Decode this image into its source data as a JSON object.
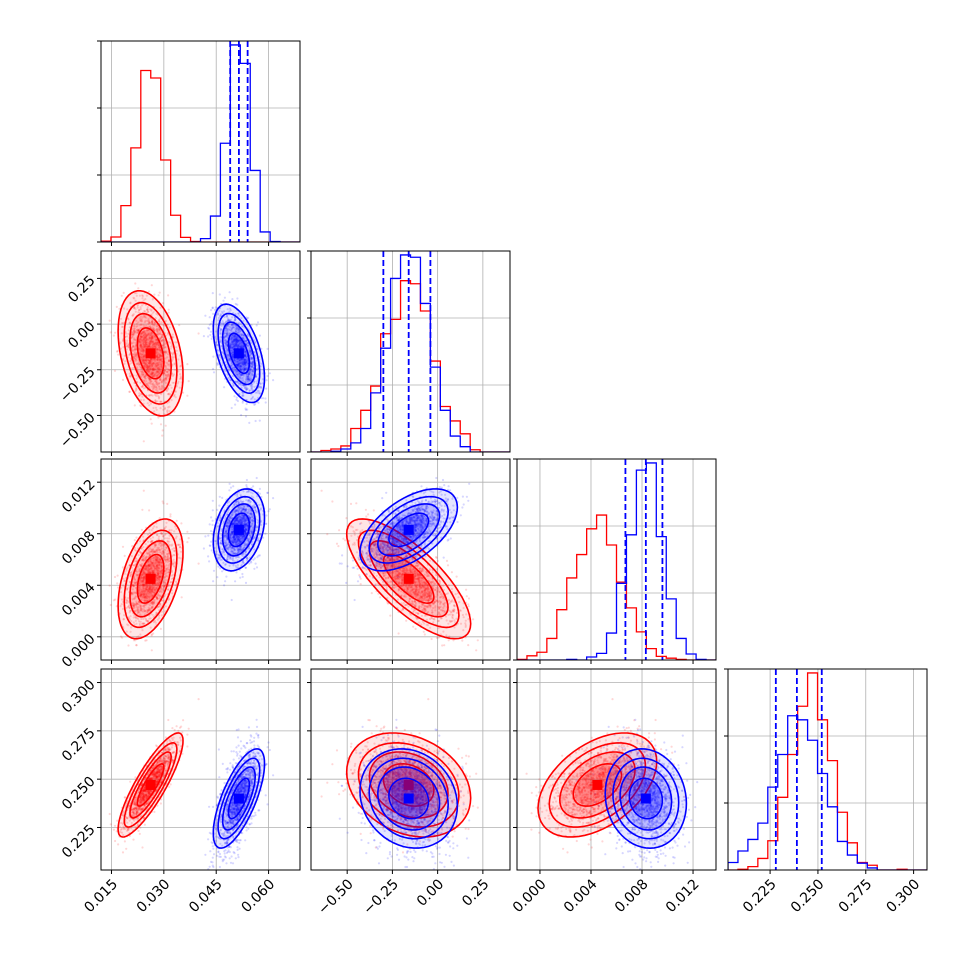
{
  "chart_data": {
    "type": "corner",
    "title": "",
    "grid": true,
    "parameters": [
      {
        "ticks": [
          0.015,
          0.03,
          0.045,
          0.06
        ],
        "tick_labels": [
          "0.015",
          "0.030",
          "0.045",
          "0.060"
        ],
        "range": [
          0.012,
          0.069
        ]
      },
      {
        "ticks": [
          -0.5,
          -0.25,
          0.0,
          0.25
        ],
        "tick_labels": [
          "−0.50",
          "−0.25",
          "0.00",
          "0.25"
        ],
        "range": [
          -0.7,
          0.4
        ]
      },
      {
        "ticks": [
          0.0,
          0.004,
          0.008,
          0.012
        ],
        "tick_labels": [
          "0.000",
          "0.004",
          "0.008",
          "0.012"
        ],
        "range": [
          -0.0018,
          0.0138
        ]
      },
      {
        "ticks": [
          0.225,
          0.25,
          0.275,
          0.3
        ],
        "tick_labels": [
          "0.225",
          "0.250",
          "0.275",
          "0.300"
        ],
        "range": [
          0.203,
          0.307
        ]
      }
    ],
    "series": [
      {
        "color": "#ff0000",
        "mean": [
          0.0262,
          -0.16,
          0.0045,
          0.247
        ],
        "sd": [
          0.0038,
          0.14,
          0.0019,
          0.011
        ],
        "corr": [
          [
            1,
            -0.35,
            0.45,
            0.85
          ],
          [
            -0.35,
            1,
            -0.75,
            -0.25
          ],
          [
            0.45,
            -0.75,
            1,
            0.45
          ],
          [
            0.85,
            -0.25,
            0.45,
            1
          ]
        ]
      },
      {
        "color": "#0000ff",
        "mean": [
          0.0515,
          -0.16,
          0.0083,
          0.24
        ],
        "sd": [
          0.003,
          0.11,
          0.0013,
          0.0105
        ],
        "corr": [
          [
            1,
            -0.5,
            0.3,
            0.7
          ],
          [
            -0.5,
            1,
            0.55,
            -0.15
          ],
          [
            0.3,
            0.55,
            1,
            -0.1
          ],
          [
            0.7,
            -0.15,
            -0.1,
            1
          ]
        ]
      }
    ],
    "quantile_lines": {
      "color": "#0000ff",
      "values": [
        [
          0.049,
          0.0515,
          0.054
        ],
        [
          -0.3,
          -0.16,
          -0.04
        ],
        [
          0.0067,
          0.0083,
          0.0096
        ],
        [
          0.228,
          0.239,
          0.252
        ]
      ]
    }
  }
}
